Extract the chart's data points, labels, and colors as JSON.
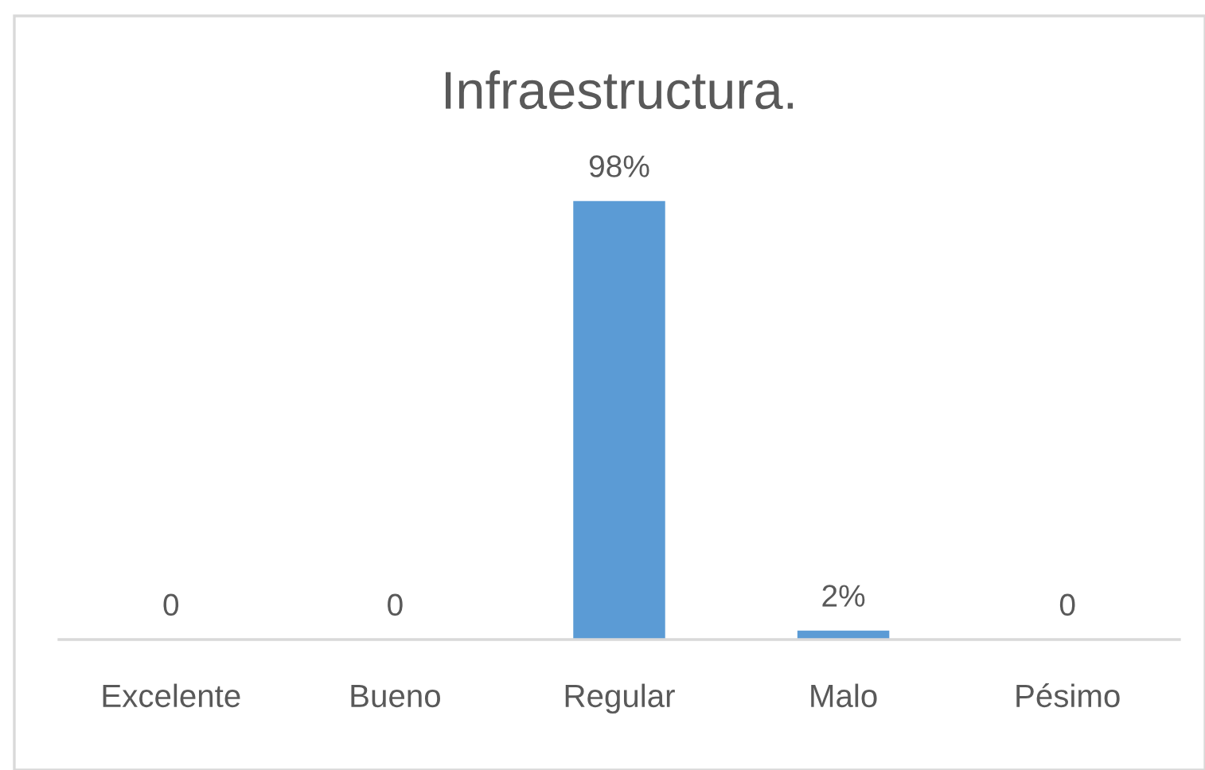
{
  "chart_data": {
    "type": "bar",
    "title": "Infraestructura.",
    "categories": [
      "Excelente",
      "Bueno",
      "Regular",
      "Malo",
      "Pésimo"
    ],
    "values": [
      0,
      0,
      98,
      2,
      0
    ],
    "color": "#5b9bd5",
    "value_labels": [
      "0",
      "0",
      "98%",
      "2%",
      "0"
    ],
    "tick_labels": "x"
  }
}
